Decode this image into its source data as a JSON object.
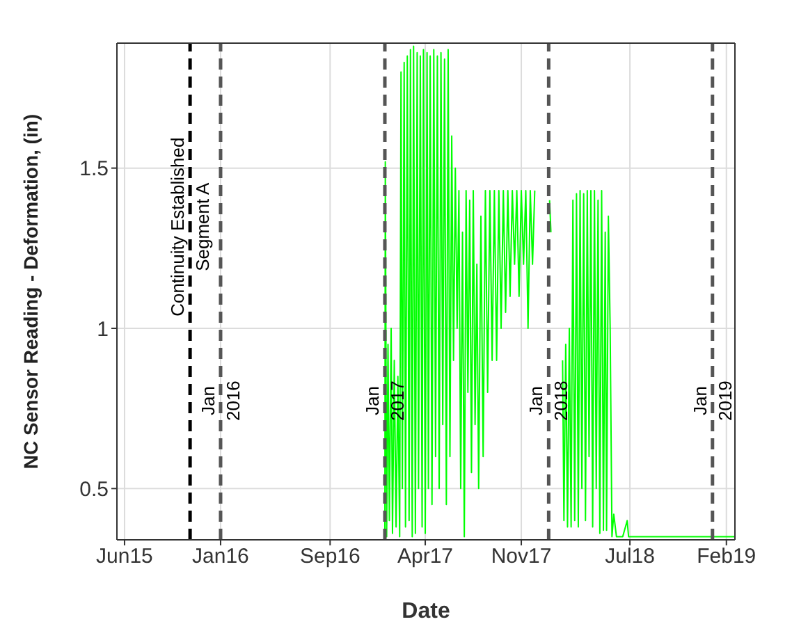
{
  "chart_data": {
    "type": "line",
    "xlabel": "Date",
    "ylabel": "NC Sensor Reading - Deformation, (in)",
    "xlim": [
      "2015-05-15",
      "2019-02-20"
    ],
    "xticks": [
      {
        "value": "2015-06-01",
        "label": "Jun15"
      },
      {
        "value": "2016-01-01",
        "label": "Jan16"
      },
      {
        "value": "2016-09-01",
        "label": "Sep16"
      },
      {
        "value": "2017-04-01",
        "label": "Apr17"
      },
      {
        "value": "2017-11-01",
        "label": "Nov17"
      },
      {
        "value": "2018-07-01",
        "label": "Jul18"
      },
      {
        "value": "2019-02-01",
        "label": "Feb19"
      }
    ],
    "ylim": [
      0.34,
      1.89
    ],
    "yticks": [
      0.5,
      1,
      1.5
    ],
    "grid": true,
    "marker": "none",
    "line_style": "solid",
    "ref_lines": [
      {
        "axis": "x",
        "value": "2015-10-25",
        "label": "Continuity Established\nSegment A",
        "color": "#000000",
        "line_style": "dashed"
      },
      {
        "axis": "x",
        "value": "2016-01-01",
        "label": "Jan\n2016",
        "color": "#555555",
        "line_style": "dashed"
      },
      {
        "axis": "x",
        "value": "2017-01-01",
        "label": "Jan\n2017",
        "color": "#555555",
        "line_style": "dashed"
      },
      {
        "axis": "x",
        "value": "2018-01-01",
        "label": "Jan\n2018",
        "color": "#555555",
        "line_style": "dashed"
      },
      {
        "axis": "x",
        "value": "2019-01-01",
        "label": "Jan\n2019",
        "color": "#555555",
        "line_style": "dashed"
      }
    ],
    "series": [
      {
        "color": "#00ff00",
        "x": [
          "2017-01-01",
          "2017-01-02",
          "2017-01-05",
          "2017-01-08",
          "2017-01-11",
          "2017-01-15",
          "2017-01-18",
          "2017-01-22",
          "2017-01-26",
          "2017-01-30",
          "2017-02-03",
          "2017-02-06",
          "2017-02-09",
          "2017-02-13",
          "2017-02-16",
          "2017-02-20",
          "2017-02-24",
          "2017-02-27",
          "2017-03-03",
          "2017-03-06",
          "2017-03-10",
          "2017-03-14",
          "2017-03-17",
          "2017-03-21",
          "2017-03-25",
          "2017-03-28",
          "2017-04-01",
          "2017-04-05",
          "2017-04-08",
          "2017-04-12",
          "2017-04-16",
          "2017-04-20",
          "2017-04-24",
          "2017-04-28",
          "2017-05-02",
          "2017-05-06",
          "2017-05-10",
          "2017-05-14",
          "2017-05-18",
          "2017-05-22",
          "2017-05-26",
          "2017-05-30",
          "2017-06-03",
          "2017-06-07",
          "2017-06-11",
          "2017-06-15",
          "2017-06-19",
          "2017-06-23",
          "2017-06-27",
          "2017-07-01",
          "2017-07-05",
          "2017-07-09",
          "2017-07-13",
          "2017-07-17",
          "2017-07-21",
          "2017-07-25",
          "2017-07-29",
          "2017-08-03",
          "2017-08-08",
          "2017-08-13",
          "2017-08-18",
          "2017-08-23",
          "2017-08-28",
          "2017-09-02",
          "2017-09-07",
          "2017-09-12",
          "2017-09-17",
          "2017-09-22",
          "2017-09-27",
          "2017-10-02",
          "2017-10-07",
          "2017-10-12",
          "2017-10-17",
          "2017-10-22",
          "2017-10-27",
          "2017-11-01",
          "2017-11-06",
          "2017-11-11",
          "2017-11-16",
          "2017-11-21",
          "2017-11-26",
          "2017-12-01",
          "2017-12-10",
          "2018-01-03",
          "2018-01-06",
          "2018-01-15",
          "2018-02-01",
          "2018-02-04",
          "2018-02-08",
          "2018-02-12",
          "2018-02-16",
          "2018-02-20",
          "2018-02-24",
          "2018-02-28",
          "2018-03-04",
          "2018-03-08",
          "2018-03-12",
          "2018-03-16",
          "2018-03-20",
          "2018-03-24",
          "2018-03-28",
          "2018-04-01",
          "2018-04-05",
          "2018-04-09",
          "2018-04-13",
          "2018-04-17",
          "2018-04-21",
          "2018-04-25",
          "2018-04-29",
          "2018-05-03",
          "2018-05-07",
          "2018-05-10",
          "2018-05-14",
          "2018-05-18",
          "2018-05-22",
          "2018-05-26",
          "2018-06-01",
          "2018-06-15",
          "2018-06-25",
          "2018-06-28",
          "2018-07-20",
          "2019-02-20"
        ],
        "values": [
          0.35,
          1.52,
          0.35,
          0.95,
          0.4,
          1.0,
          0.36,
          0.9,
          0.38,
          0.85,
          0.35,
          1.8,
          0.5,
          1.83,
          0.38,
          1.85,
          0.4,
          1.87,
          0.35,
          1.88,
          0.36,
          1.86,
          0.5,
          1.85,
          0.38,
          1.87,
          0.36,
          1.86,
          0.5,
          1.85,
          0.45,
          1.87,
          0.6,
          1.85,
          0.5,
          1.86,
          0.7,
          1.84,
          0.45,
          1.87,
          0.6,
          1.6,
          0.9,
          1.5,
          1.0,
          1.43,
          0.5,
          1.3,
          0.35,
          1.43,
          0.8,
          1.4,
          0.55,
          1.43,
          0.7,
          1.2,
          0.5,
          1.35,
          0.6,
          1.43,
          0.8,
          1.43,
          0.9,
          1.43,
          0.9,
          1.43,
          1.0,
          1.43,
          1.05,
          1.43,
          1.1,
          1.43,
          1.2,
          1.43,
          1.1,
          1.43,
          1.2,
          1.43,
          1.0,
          1.43,
          1.2,
          1.43,
          null,
          1.4,
          1.3,
          null,
          0.9,
          0.4,
          0.95,
          0.38,
          1.0,
          0.38,
          1.4,
          0.4,
          1.42,
          0.38,
          1.43,
          0.5,
          1.42,
          0.4,
          1.43,
          0.6,
          1.43,
          0.38,
          1.43,
          0.5,
          1.4,
          0.36,
          1.43,
          0.37,
          1.3,
          0.37,
          1.35,
          1.0,
          0.35,
          0.42,
          0.35,
          0.35,
          0.4,
          0.35,
          0.35,
          0.35
        ]
      }
    ]
  }
}
